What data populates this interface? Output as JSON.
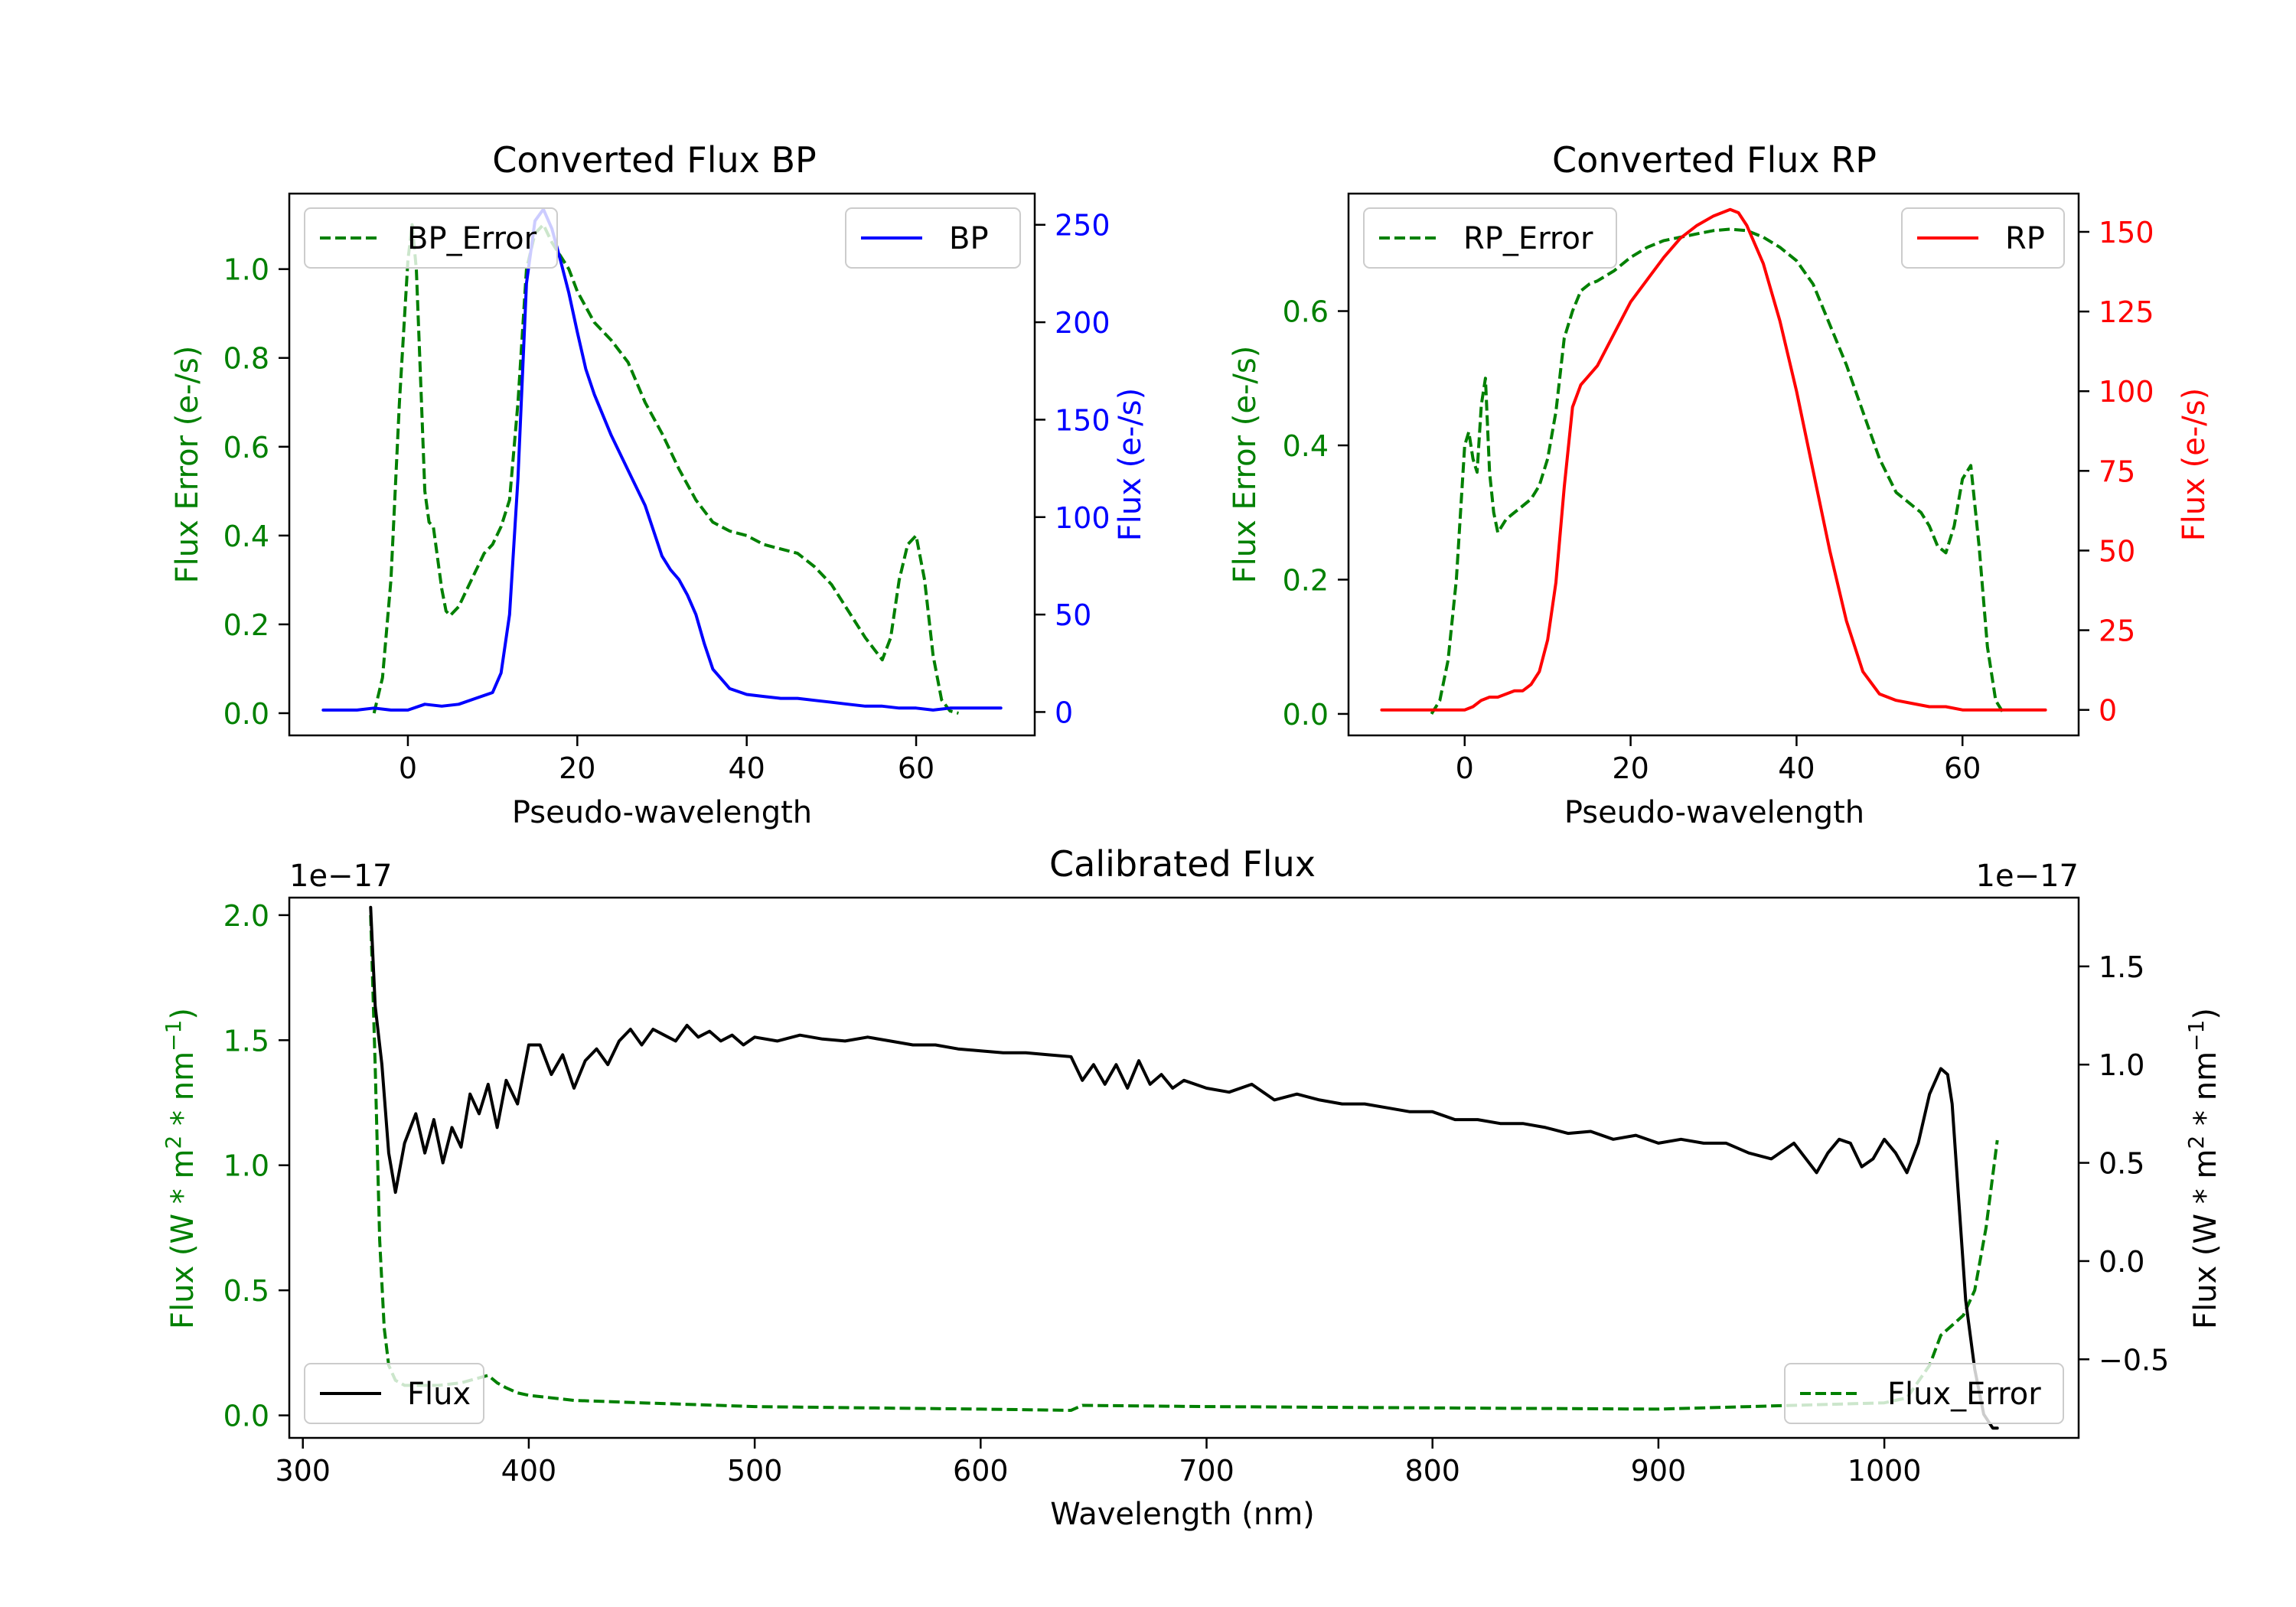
{
  "chart_data": [
    {
      "id": "bp",
      "type": "line",
      "title": "Converted Flux BP",
      "xlabel": "Pseudo-wavelength",
      "ylabel_left": "Flux Error (e-/s)",
      "ylabel_right": "Flux (e-/s)",
      "xlim": [
        -14,
        74
      ],
      "ylim_left": [
        -0.05,
        1.17
      ],
      "ylim_right": [
        -12,
        266
      ],
      "xticks": [
        0,
        20,
        40,
        60
      ],
      "yticks_left": [
        0.0,
        0.2,
        0.4,
        0.6,
        0.8,
        1.0
      ],
      "yticks_right": [
        0,
        50,
        100,
        150,
        200,
        250
      ],
      "legend_left": {
        "label": "BP_Error",
        "placement": "upper left"
      },
      "legend_right": {
        "label": "BP",
        "placement": "upper right"
      },
      "series": [
        {
          "name": "BP_Error",
          "axis": "left",
          "color": "#008000",
          "style": "dashed",
          "x": [
            -4,
            -3,
            -2,
            -1,
            0,
            0.5,
            1,
            1.5,
            2,
            2.5,
            3,
            3.5,
            4,
            4.5,
            5,
            6,
            7,
            8,
            9,
            10,
            11,
            12,
            13,
            14,
            15,
            16,
            17,
            18,
            19,
            20,
            22,
            24,
            26,
            28,
            30,
            32,
            34,
            36,
            38,
            40,
            42,
            44,
            46,
            48,
            50,
            52,
            54,
            56,
            57,
            58,
            59,
            60,
            61,
            62,
            63,
            64,
            65
          ],
          "y": [
            0.0,
            0.08,
            0.3,
            0.7,
            1.02,
            1.1,
            1.0,
            0.75,
            0.5,
            0.43,
            0.42,
            0.35,
            0.28,
            0.23,
            0.22,
            0.24,
            0.28,
            0.32,
            0.36,
            0.38,
            0.42,
            0.48,
            0.7,
            1.0,
            1.08,
            1.1,
            1.06,
            1.03,
            1.0,
            0.95,
            0.88,
            0.84,
            0.79,
            0.7,
            0.63,
            0.55,
            0.48,
            0.43,
            0.41,
            0.4,
            0.38,
            0.37,
            0.36,
            0.33,
            0.29,
            0.23,
            0.17,
            0.12,
            0.17,
            0.3,
            0.38,
            0.4,
            0.3,
            0.13,
            0.03,
            0.005,
            0.0
          ]
        },
        {
          "name": "BP",
          "axis": "right",
          "color": "#0000ff",
          "style": "solid",
          "x": [
            -10,
            -8,
            -6,
            -4,
            -2,
            0,
            2,
            4,
            6,
            8,
            10,
            11,
            12,
            13,
            14,
            15,
            16,
            17,
            18,
            19,
            20,
            21,
            22,
            24,
            26,
            28,
            30,
            31,
            32,
            33,
            34,
            35,
            36,
            38,
            40,
            42,
            44,
            46,
            48,
            50,
            52,
            54,
            56,
            58,
            60,
            62,
            64,
            66,
            68,
            70
          ],
          "y": [
            1,
            1,
            1,
            2,
            1,
            1,
            4,
            3,
            4,
            7,
            10,
            20,
            50,
            120,
            220,
            252,
            258,
            248,
            232,
            215,
            195,
            176,
            163,
            142,
            124,
            106,
            80,
            73,
            68,
            60,
            50,
            35,
            22,
            12,
            9,
            8,
            7,
            7,
            6,
            5,
            4,
            3,
            3,
            2,
            2,
            1,
            2,
            2,
            2,
            2
          ]
        }
      ]
    },
    {
      "id": "rp",
      "type": "line",
      "title": "Converted Flux RP",
      "xlabel": "Pseudo-wavelength",
      "ylabel_left": "Flux Error (e-/s)",
      "ylabel_right": "Flux (e-/s)",
      "xlim": [
        -14,
        74
      ],
      "ylim_left": [
        -0.032,
        0.775
      ],
      "ylim_right": [
        -8,
        162
      ],
      "xticks": [
        0,
        20,
        40,
        60
      ],
      "yticks_left": [
        0.0,
        0.2,
        0.4,
        0.6
      ],
      "yticks_right": [
        0,
        25,
        50,
        75,
        100,
        125,
        150
      ],
      "legend_left": {
        "label": "RP_Error",
        "placement": "upper left"
      },
      "legend_right": {
        "label": "RP",
        "placement": "upper right"
      },
      "series": [
        {
          "name": "RP_Error",
          "axis": "left",
          "color": "#008000",
          "style": "dashed",
          "x": [
            -4,
            -3,
            -2,
            -1,
            0,
            0.5,
            1,
            1.5,
            2,
            2.5,
            3,
            3.5,
            4,
            5,
            6,
            7,
            8,
            9,
            10,
            11,
            12,
            13,
            14,
            15,
            16,
            18,
            20,
            22,
            24,
            26,
            28,
            30,
            32,
            34,
            36,
            38,
            40,
            42,
            44,
            46,
            48,
            50,
            52,
            54,
            55,
            56,
            57,
            58,
            59,
            60,
            61,
            62,
            63,
            64,
            65
          ],
          "y": [
            0.0,
            0.02,
            0.08,
            0.2,
            0.4,
            0.42,
            0.38,
            0.36,
            0.46,
            0.5,
            0.36,
            0.3,
            0.27,
            0.29,
            0.3,
            0.31,
            0.32,
            0.34,
            0.38,
            0.45,
            0.56,
            0.6,
            0.63,
            0.64,
            0.645,
            0.66,
            0.68,
            0.695,
            0.705,
            0.71,
            0.715,
            0.72,
            0.722,
            0.72,
            0.71,
            0.695,
            0.675,
            0.64,
            0.58,
            0.52,
            0.45,
            0.38,
            0.33,
            0.31,
            0.3,
            0.28,
            0.25,
            0.24,
            0.28,
            0.35,
            0.37,
            0.25,
            0.1,
            0.02,
            0.0
          ]
        },
        {
          "name": "RP",
          "axis": "right",
          "color": "#ff0000",
          "style": "solid",
          "x": [
            -10,
            -8,
            -6,
            -4,
            -2,
            0,
            1,
            2,
            3,
            4,
            5,
            6,
            7,
            8,
            9,
            10,
            11,
            12,
            13,
            14,
            15,
            16,
            18,
            20,
            22,
            24,
            26,
            28,
            30,
            32,
            33,
            34,
            36,
            38,
            40,
            42,
            44,
            46,
            48,
            50,
            52,
            54,
            56,
            58,
            60,
            62,
            64,
            66,
            68,
            70
          ],
          "y": [
            0,
            0,
            0,
            0,
            0,
            0,
            1,
            3,
            4,
            4,
            5,
            6,
            6,
            8,
            12,
            22,
            40,
            70,
            95,
            102,
            105,
            108,
            118,
            128,
            135,
            142,
            148,
            152,
            155,
            157,
            156,
            152,
            140,
            122,
            100,
            75,
            50,
            28,
            12,
            5,
            3,
            2,
            1,
            1,
            0,
            0,
            0,
            0,
            0,
            0
          ]
        }
      ]
    },
    {
      "id": "calibrated",
      "type": "line",
      "title": "Calibrated Flux",
      "xlabel": "Wavelength (nm)",
      "ylabel_left": "Flux (W * m",
      "ylabel_right": "Flux (W * m",
      "ylabel_unit_mid": " * nm",
      "ylabel_sup1": "2",
      "ylabel_sup2": "−1",
      "ylabel_close": ")",
      "offset_left": "1e−17",
      "offset_right": "1e−17",
      "xlim": [
        294,
        1086
      ],
      "ylim_left": [
        -0.09,
        2.07
      ],
      "ylim_right": [
        -0.9,
        1.85
      ],
      "xticks": [
        300,
        400,
        500,
        600,
        700,
        800,
        900,
        1000
      ],
      "yticks_left": [
        0.0,
        0.5,
        1.0,
        1.5,
        2.0
      ],
      "yticks_left_labels": [
        "0.0",
        "0.5",
        "1.0",
        "1.5",
        "2.0"
      ],
      "yticks_right": [
        -0.5,
        0.0,
        0.5,
        1.0,
        1.5
      ],
      "yticks_right_labels": [
        "−0.5",
        "0.0",
        "0.5",
        "1.0",
        "1.5"
      ],
      "legend_left": {
        "label": "Flux",
        "placement": "lower left"
      },
      "legend_right": {
        "label": "Flux_Error",
        "placement": "lower right"
      },
      "series": [
        {
          "name": "Flux_Error",
          "axis": "left",
          "color": "#008000",
          "style": "dashed",
          "x": [
            330,
            332,
            334,
            336,
            338,
            341,
            345,
            350,
            360,
            370,
            378,
            382,
            386,
            390,
            395,
            400,
            420,
            450,
            500,
            550,
            600,
            640,
            645,
            700,
            800,
            900,
            1000,
            1010,
            1020,
            1025,
            1030,
            1035,
            1040,
            1045,
            1050
          ],
          "y": [
            2.0,
            1.4,
            0.7,
            0.35,
            0.2,
            0.14,
            0.12,
            0.12,
            0.12,
            0.13,
            0.15,
            0.16,
            0.13,
            0.11,
            0.09,
            0.08,
            0.06,
            0.05,
            0.035,
            0.03,
            0.025,
            0.02,
            0.04,
            0.035,
            0.03,
            0.025,
            0.05,
            0.07,
            0.2,
            0.32,
            0.36,
            0.4,
            0.5,
            0.75,
            1.1
          ]
        },
        {
          "name": "Flux",
          "axis": "right",
          "color": "#000000",
          "style": "solid",
          "x": [
            330,
            332,
            335,
            338,
            341,
            345,
            350,
            354,
            358,
            362,
            366,
            370,
            374,
            378,
            382,
            386,
            390,
            395,
            400,
            405,
            410,
            415,
            420,
            425,
            430,
            435,
            440,
            445,
            450,
            455,
            460,
            465,
            470,
            475,
            480,
            485,
            490,
            495,
            500,
            510,
            520,
            530,
            540,
            550,
            560,
            570,
            580,
            590,
            600,
            610,
            620,
            630,
            640,
            645,
            650,
            655,
            660,
            665,
            670,
            675,
            680,
            685,
            690,
            700,
            710,
            720,
            730,
            740,
            750,
            760,
            770,
            780,
            790,
            800,
            810,
            820,
            830,
            840,
            850,
            860,
            870,
            880,
            890,
            900,
            910,
            920,
            930,
            940,
            950,
            960,
            970,
            975,
            980,
            985,
            990,
            995,
            1000,
            1005,
            1010,
            1015,
            1020,
            1025,
            1028,
            1030,
            1033,
            1036,
            1040,
            1044,
            1048,
            1050
          ],
          "y": [
            1.8,
            1.3,
            1.0,
            0.55,
            0.35,
            0.6,
            0.75,
            0.55,
            0.72,
            0.5,
            0.68,
            0.58,
            0.85,
            0.75,
            0.9,
            0.68,
            0.92,
            0.8,
            1.1,
            1.1,
            0.95,
            1.05,
            0.88,
            1.02,
            1.08,
            1.0,
            1.12,
            1.18,
            1.1,
            1.18,
            1.15,
            1.12,
            1.2,
            1.14,
            1.17,
            1.12,
            1.15,
            1.1,
            1.14,
            1.12,
            1.15,
            1.13,
            1.12,
            1.14,
            1.12,
            1.1,
            1.1,
            1.08,
            1.07,
            1.06,
            1.06,
            1.05,
            1.04,
            0.92,
            1.0,
            0.9,
            1.0,
            0.88,
            1.02,
            0.9,
            0.95,
            0.88,
            0.92,
            0.88,
            0.86,
            0.9,
            0.82,
            0.85,
            0.82,
            0.8,
            0.8,
            0.78,
            0.76,
            0.76,
            0.72,
            0.72,
            0.7,
            0.7,
            0.68,
            0.65,
            0.66,
            0.62,
            0.64,
            0.6,
            0.62,
            0.6,
            0.6,
            0.55,
            0.52,
            0.6,
            0.45,
            0.55,
            0.62,
            0.6,
            0.48,
            0.52,
            0.62,
            0.55,
            0.45,
            0.6,
            0.85,
            0.98,
            0.95,
            0.8,
            0.3,
            -0.2,
            -0.55,
            -0.78,
            -0.85,
            -0.85
          ]
        }
      ]
    }
  ]
}
